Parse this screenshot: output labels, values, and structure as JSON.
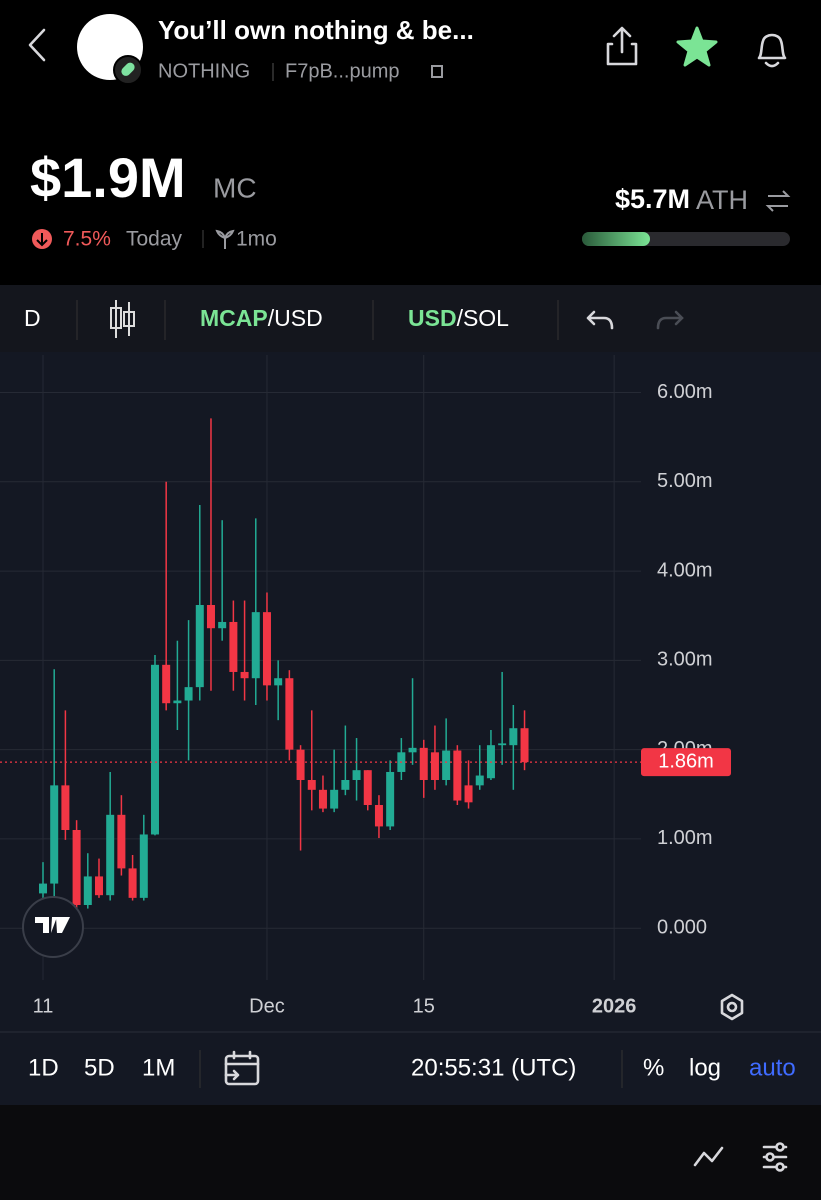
{
  "header": {
    "title": "You’ll own nothing & be...",
    "ticker": "NOTHING",
    "address": "F7pB...pump"
  },
  "stats": {
    "market_cap": "$1.9M",
    "mc_label": "MC",
    "change": "7.5%",
    "change_period": "Today",
    "age": "1mo",
    "ath": "$5.7M",
    "ath_label": "ATH"
  },
  "toolbar": {
    "interval": "D",
    "pair_1_main": "MCAP",
    "pair_1_rest": "/USD",
    "pair_2_main": "USD",
    "pair_2_rest": "/SOL"
  },
  "chart_data": {
    "type": "candlestick",
    "up_color": "#22ab94",
    "down_color": "#f23645",
    "grid": true,
    "x": [
      0,
      1,
      2,
      3,
      4,
      5,
      6,
      7,
      8,
      9,
      10,
      11,
      12,
      13,
      14,
      15,
      16,
      17,
      18,
      19,
      20,
      21,
      22,
      23,
      24,
      25,
      26,
      27,
      28,
      29,
      30,
      31,
      32,
      33,
      34,
      35,
      36,
      37,
      38,
      39,
      40,
      41,
      42,
      43
    ],
    "open": [
      390000,
      500000,
      1600000,
      1100000,
      260000,
      580000,
      370000,
      1270000,
      670000,
      340000,
      1050000,
      2950000,
      2520000,
      2550000,
      2700000,
      3620000,
      3360000,
      3430000,
      2870000,
      2800000,
      3540000,
      2720000,
      2800000,
      2000000,
      1660000,
      1550000,
      1340000,
      1550000,
      1660000,
      1770000,
      1380000,
      1140000,
      1750000,
      1970000,
      2020000,
      1970000,
      1660000,
      1990000,
      1600000,
      1600000,
      1680000,
      2050000,
      2050000,
      2240000
    ],
    "high": [
      740000,
      2900000,
      2440000,
      1210000,
      840000,
      780000,
      1750000,
      1490000,
      820000,
      1270000,
      3060000,
      5000000,
      3220000,
      3450000,
      4740000,
      5710000,
      4570000,
      3670000,
      3670000,
      4590000,
      3760000,
      3000000,
      2890000,
      2050000,
      2440000,
      1710000,
      2000000,
      2270000,
      2130000,
      1770000,
      1490000,
      1880000,
      2130000,
      2800000,
      2110000,
      2270000,
      2350000,
      2050000,
      1880000,
      2050000,
      2220000,
      2870000,
      2500000,
      2440000
    ],
    "low": [
      310000,
      340000,
      990000,
      200000,
      220000,
      340000,
      310000,
      590000,
      310000,
      310000,
      1040000,
      2440000,
      2220000,
      1880000,
      2550000,
      2660000,
      3220000,
      2660000,
      2550000,
      2500000,
      2550000,
      2330000,
      1880000,
      870000,
      1320000,
      1300000,
      1300000,
      1490000,
      1430000,
      1320000,
      1010000,
      1100000,
      1660000,
      1830000,
      1460000,
      1550000,
      1600000,
      1380000,
      1340000,
      1550000,
      1660000,
      1830000,
      1550000,
      1770000
    ],
    "close": [
      500000,
      1600000,
      1100000,
      260000,
      580000,
      370000,
      1270000,
      670000,
      340000,
      1050000,
      2950000,
      2520000,
      2550000,
      2700000,
      3620000,
      3360000,
      3430000,
      2870000,
      2800000,
      3540000,
      2720000,
      2800000,
      2000000,
      1660000,
      1550000,
      1340000,
      1550000,
      1660000,
      1770000,
      1380000,
      1140000,
      1750000,
      1970000,
      2020000,
      1660000,
      1660000,
      1990000,
      1430000,
      1410000,
      1710000,
      2050000,
      2070000,
      2240000,
      1860000
    ],
    "last_label": "1.86m",
    "ylim": [
      -580000,
      6420000
    ],
    "yticks": [
      {
        "value": 0,
        "label": "0.000"
      },
      {
        "value": 1000000,
        "label": "1.00m"
      },
      {
        "value": 2000000,
        "label": "2.00m"
      },
      {
        "value": 3000000,
        "label": "3.00m"
      },
      {
        "value": 4000000,
        "label": "4.00m"
      },
      {
        "value": 5000000,
        "label": "5.00m"
      },
      {
        "value": 6000000,
        "label": "6.00m"
      }
    ],
    "xlim": [
      -3.84,
      53.4
    ],
    "xticks": [
      {
        "value": 0,
        "label": "11"
      },
      {
        "value": 20,
        "label": "Dec"
      },
      {
        "value": 34,
        "label": "15"
      },
      {
        "value": 51,
        "label": "2026"
      }
    ]
  },
  "bottom_bar": {
    "ranges": [
      "1D",
      "5D",
      "1M"
    ],
    "time": "20:55:31 (UTC)",
    "percent": "%",
    "log": "log",
    "auto": "auto"
  }
}
